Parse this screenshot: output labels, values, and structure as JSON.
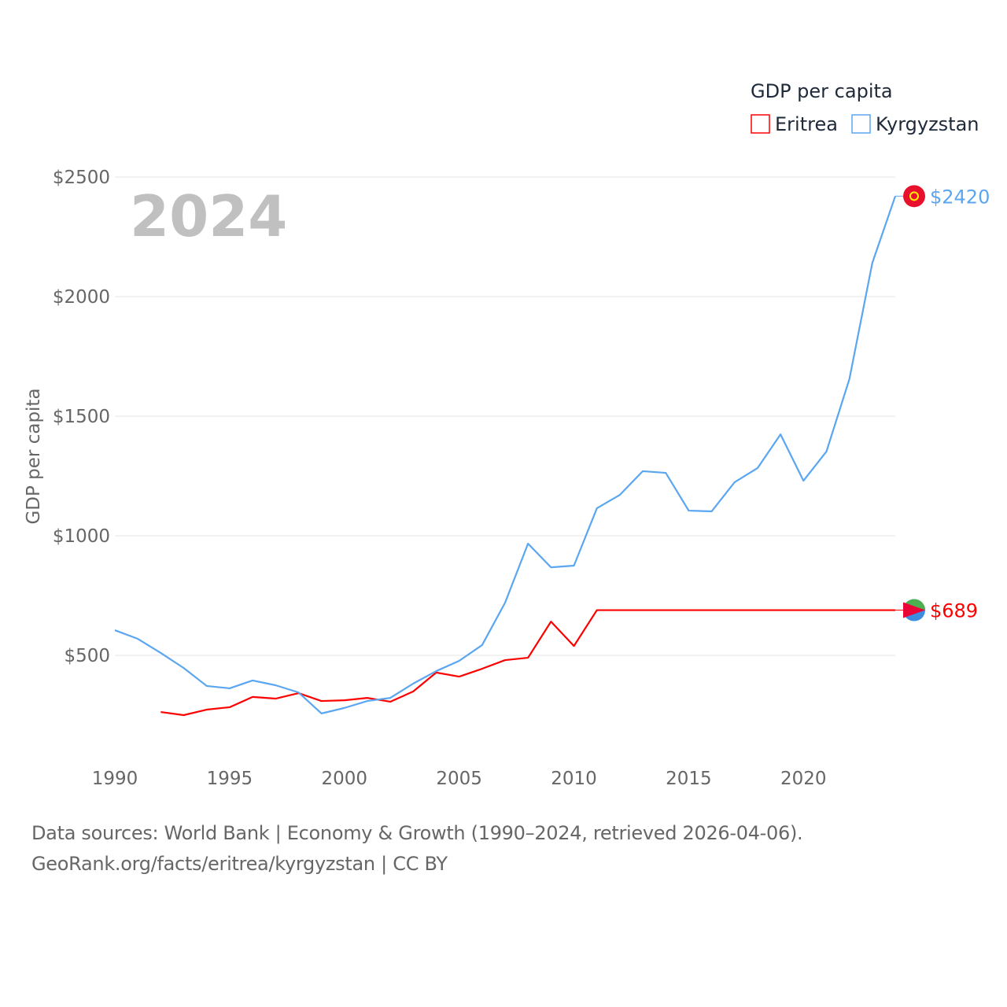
{
  "chart_data": {
    "type": "line",
    "title": "GDP per capita",
    "year_label": "2024",
    "xlabel": "",
    "ylabel": "GDP per capita",
    "xlim": [
      1990,
      2024
    ],
    "ylim": [
      0,
      2500
    ],
    "x_ticks": [
      1990,
      1995,
      2000,
      2005,
      2010,
      2015,
      2020
    ],
    "y_ticks": [
      500,
      1000,
      1500,
      2000,
      2500
    ],
    "y_tick_labels": [
      "$500",
      "$1000",
      "$1500",
      "$2000",
      "$2500"
    ],
    "x_tick_labels": [
      "1990",
      "1995",
      "2000",
      "2005",
      "2010",
      "2015",
      "2020"
    ],
    "grid": true,
    "legend_placement": "top-right",
    "series": [
      {
        "name": "Eritrea",
        "color": "#ff0000",
        "end_label": "$689",
        "x": [
          1992,
          1993,
          1994,
          1995,
          1996,
          1997,
          1998,
          1999,
          2000,
          2001,
          2002,
          2003,
          2004,
          2005,
          2006,
          2007,
          2008,
          2009,
          2010,
          2011,
          2024
        ],
        "values": [
          263,
          250,
          273,
          283,
          326,
          319,
          342,
          309,
          312,
          322,
          306,
          349,
          428,
          411,
          444,
          480,
          490,
          641,
          539,
          689,
          689
        ]
      },
      {
        "name": "Kyrgyzstan",
        "color": "#5ba6f0",
        "end_label": "$2420",
        "x": [
          1990,
          1991,
          1992,
          1993,
          1994,
          1995,
          1996,
          1997,
          1998,
          1999,
          2000,
          2001,
          2002,
          2003,
          2004,
          2005,
          2006,
          2007,
          2008,
          2009,
          2010,
          2011,
          2012,
          2013,
          2014,
          2015,
          2016,
          2017,
          2018,
          2019,
          2020,
          2021,
          2022,
          2023,
          2024
        ],
        "values": [
          605,
          569,
          510,
          447,
          372,
          362,
          395,
          375,
          345,
          257,
          280,
          309,
          322,
          382,
          434,
          477,
          543,
          720,
          967,
          868,
          875,
          1115,
          1171,
          1270,
          1263,
          1105,
          1102,
          1224,
          1283,
          1424,
          1230,
          1352,
          1655,
          2141,
          2420
        ]
      }
    ]
  },
  "footer": {
    "line1": "Data sources: World Bank | Economy & Growth (1990–2024, retrieved 2026-04-06).",
    "line2": "GeoRank.org/facts/eritrea/kyrgyzstan | CC BY"
  }
}
